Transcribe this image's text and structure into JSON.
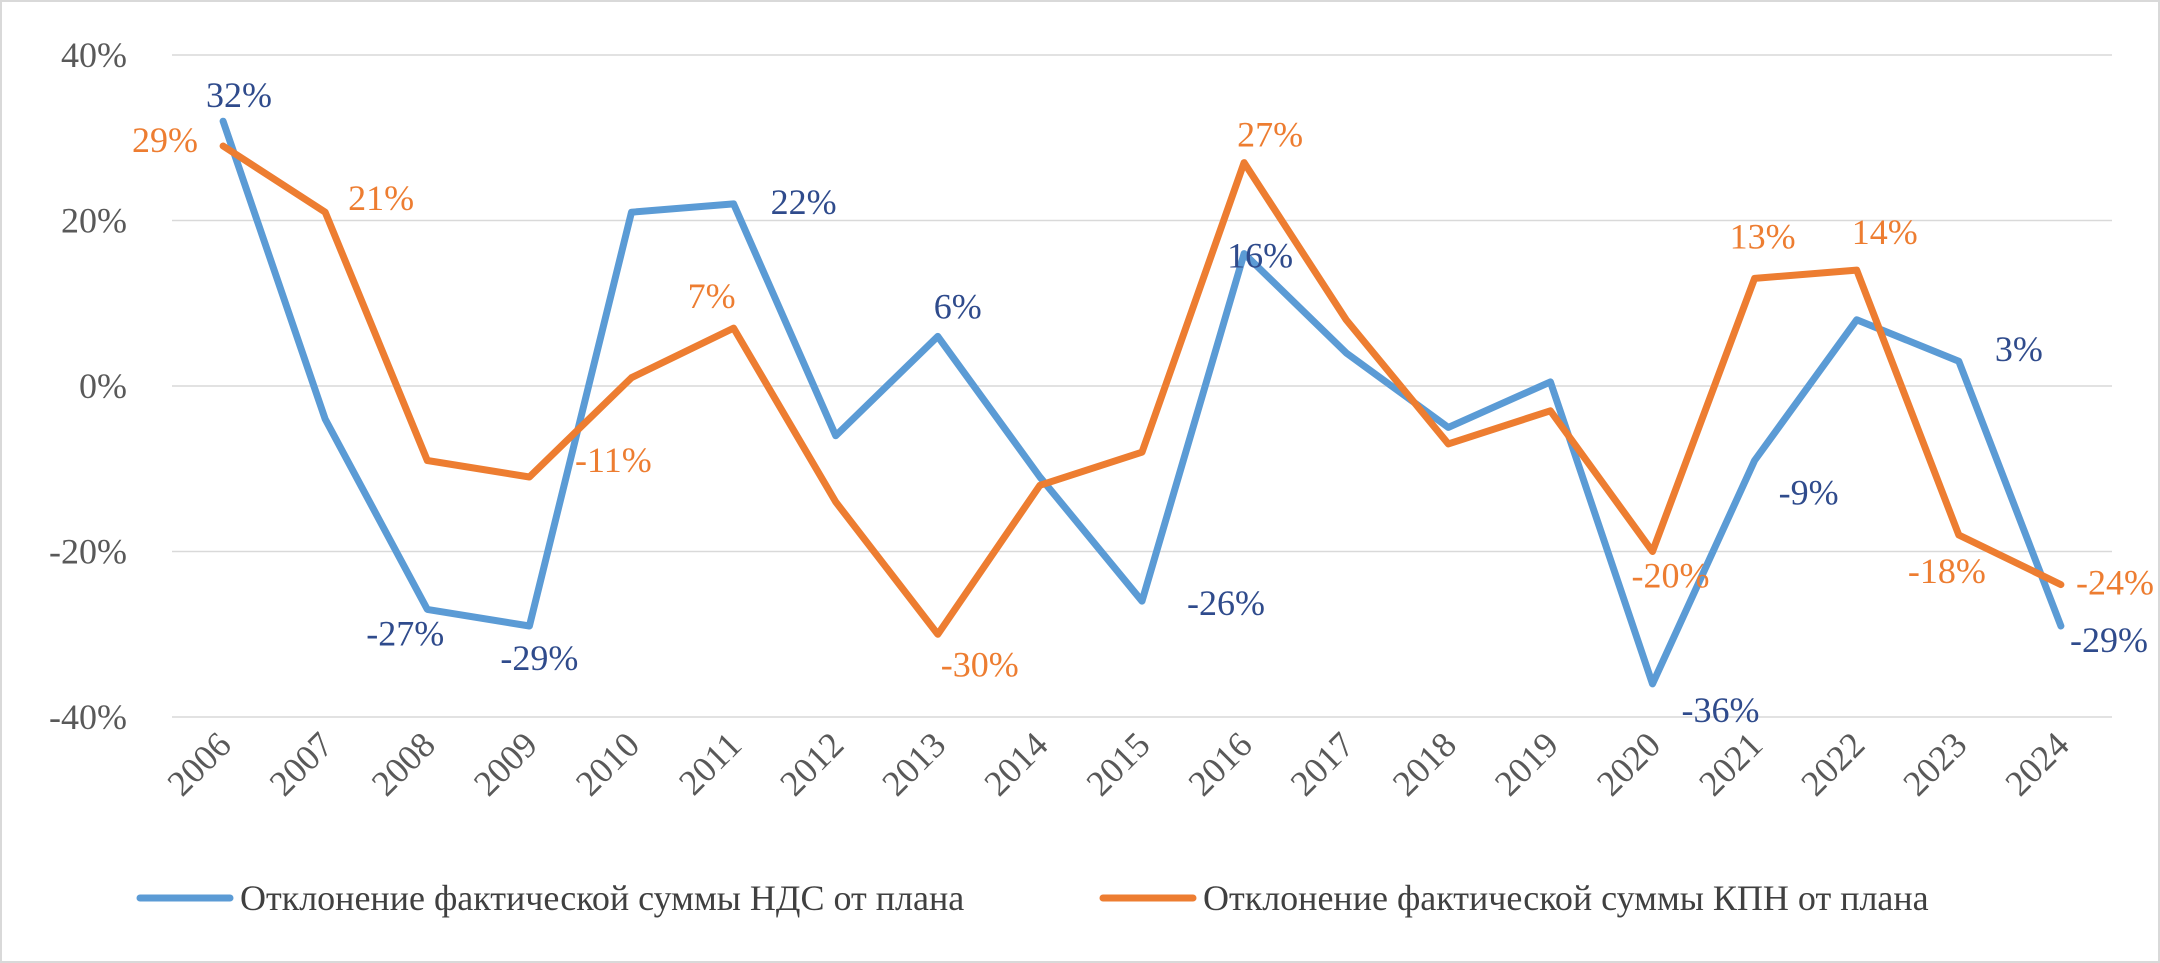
{
  "chart_data": {
    "type": "line",
    "title": "",
    "xlabel": "",
    "ylabel": "",
    "x": [
      "2006",
      "2007",
      "2008",
      "2009",
      "2010",
      "2011",
      "2012",
      "2013",
      "2014",
      "2015",
      "2016",
      "2017",
      "2018",
      "2019",
      "2020",
      "2021",
      "2022",
      "2023",
      "2024"
    ],
    "ylim": [
      -40,
      40
    ],
    "yticks": [
      -40,
      -20,
      0,
      20,
      40
    ],
    "ytick_labels": [
      "-40%",
      "-20%",
      "0%",
      "20%",
      "40%"
    ],
    "grid": true,
    "legend_position": "bottom",
    "series": [
      {
        "name": "Отклонение фактической суммы НДС от плана",
        "color": "#5b9bd5",
        "label_color": "#2f4b8c",
        "values": [
          32,
          -4,
          -27,
          -29,
          21,
          22,
          -6,
          6,
          -11,
          -26,
          16,
          4,
          -5,
          0.5,
          -36,
          -9,
          8,
          3,
          -29
        ],
        "data_labels": [
          {
            "index": 0,
            "text": "32%"
          },
          {
            "index": 2,
            "text": "-27%"
          },
          {
            "index": 3,
            "text": "-29%"
          },
          {
            "index": 5,
            "text": "22%"
          },
          {
            "index": 7,
            "text": "6%"
          },
          {
            "index": 9,
            "text": "-26%"
          },
          {
            "index": 10,
            "text": "16%"
          },
          {
            "index": 14,
            "text": "-36%"
          },
          {
            "index": 15,
            "text": "-9%"
          },
          {
            "index": 17,
            "text": "3%"
          },
          {
            "index": 18,
            "text": "-29%"
          }
        ]
      },
      {
        "name": "Отклонение фактической суммы КПН от плана",
        "color": "#ed7d31",
        "label_color": "#ed7d31",
        "values": [
          29,
          21,
          -9,
          -11,
          1,
          7,
          -14,
          -30,
          -12,
          -8,
          27,
          8,
          -7,
          -3,
          -20,
          13,
          14,
          -18,
          -24
        ],
        "data_labels": [
          {
            "index": 0,
            "text": "29%"
          },
          {
            "index": 1,
            "text": "21%"
          },
          {
            "index": 3,
            "text": "-11%"
          },
          {
            "index": 5,
            "text": "7%"
          },
          {
            "index": 7,
            "text": "-30%"
          },
          {
            "index": 10,
            "text": "27%"
          },
          {
            "index": 14,
            "text": "-20%"
          },
          {
            "index": 15,
            "text": "13%"
          },
          {
            "index": 16,
            "text": "14%"
          },
          {
            "index": 17,
            "text": "-18%"
          },
          {
            "index": 18,
            "text": "-24%"
          }
        ]
      }
    ]
  }
}
